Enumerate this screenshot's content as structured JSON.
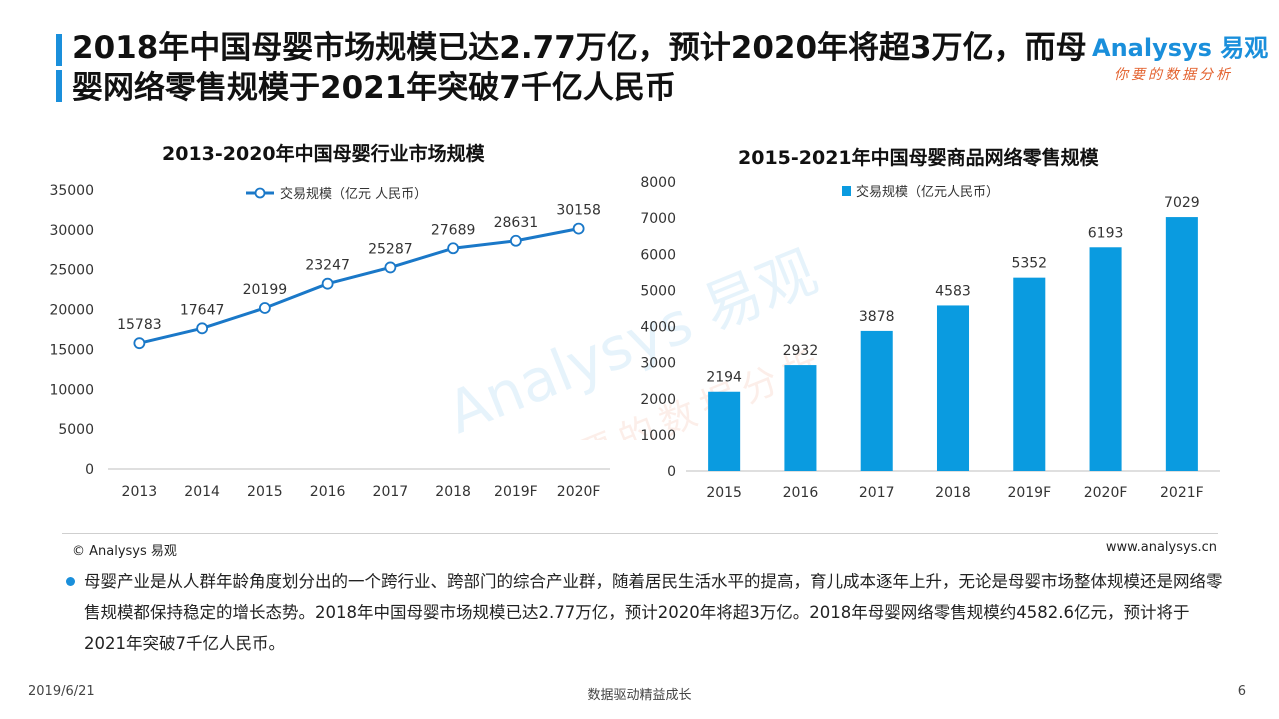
{
  "header": {
    "title": "2018年中国母婴市场规模已达2.77万亿，预计2020年将超3万亿，而母婴网络零售规模于2021年突破7千亿人民币",
    "logo_main": "Analysys 易观",
    "logo_sub": "你要的数据分析"
  },
  "watermark": {
    "main": "Analysys 易观",
    "sub": "你要的数据分析"
  },
  "chart_data": [
    {
      "type": "line",
      "title": "2013-2020年中国母婴行业市场规模",
      "legend": "交易规模（亿元 人民币）",
      "categories": [
        "2013",
        "2014",
        "2015",
        "2016",
        "2017",
        "2018",
        "2019F",
        "2020F"
      ],
      "values": [
        15783,
        17647,
        20199,
        23247,
        25287,
        27689,
        28631,
        30158
      ],
      "ylim": [
        0,
        35000
      ],
      "yticks": [
        "0",
        "5000",
        "10000",
        "15000",
        "20000",
        "25000",
        "30000",
        "35000"
      ],
      "legend_position": "top-center",
      "color": "#1a78c8"
    },
    {
      "type": "bar",
      "title": "2015-2021年中国母婴商品网络零售规模",
      "legend": "交易规模（亿元人民币）",
      "categories": [
        "2015",
        "2016",
        "2017",
        "2018",
        "2019F",
        "2020F",
        "2021F"
      ],
      "values": [
        2194,
        2932,
        3878,
        4583,
        5352,
        6193,
        7029
      ],
      "ylim": [
        0,
        8000
      ],
      "yticks": [
        "0",
        "1000",
        "2000",
        "3000",
        "4000",
        "5000",
        "6000",
        "7000",
        "8000"
      ],
      "legend_position": "top-left",
      "color": "#0a9be0"
    }
  ],
  "footer": {
    "copyright": "© Analysys 易观",
    "website": "www.analysys.cn",
    "summary": "母婴产业是从人群年龄角度划分出的一个跨行业、跨部门的综合产业群，随着居民生活水平的提高，育儿成本逐年上升，无论是母婴市场整体规模还是网络零售规模都保持稳定的增长态势。2018年中国母婴市场规模已达2.77万亿，预计2020年将超3万亿。2018年母婴网络零售规模约4582.6亿元，预计将于2021年突破7千亿人民币。",
    "date": "2019/6/21",
    "slogan": "数据驱动精益成长",
    "page": "6"
  }
}
